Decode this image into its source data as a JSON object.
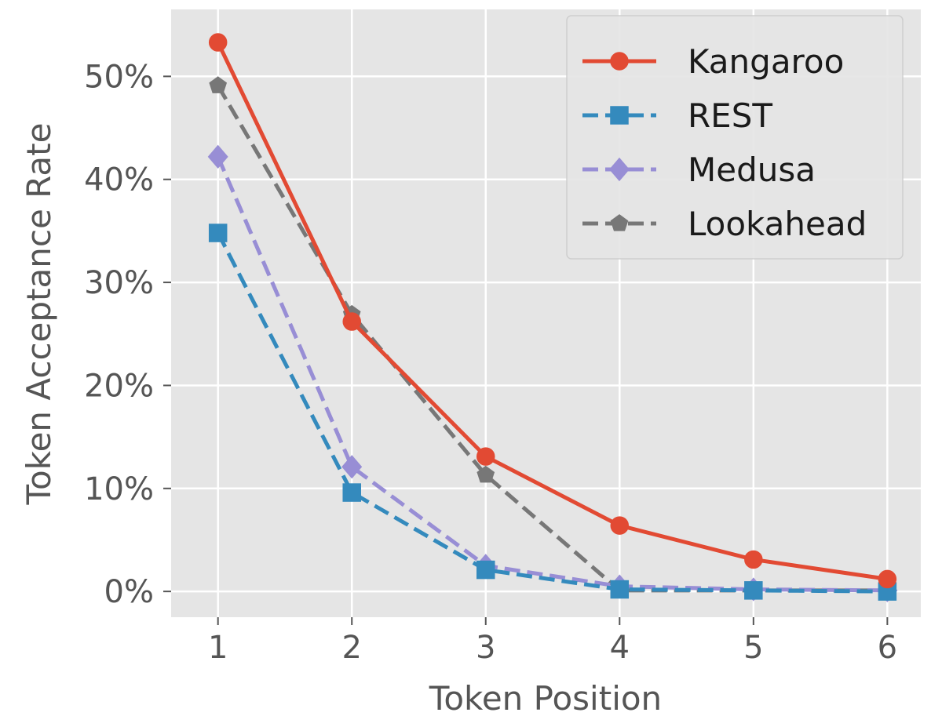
{
  "chart_data": {
    "type": "line",
    "xlabel": "Token Position",
    "ylabel": "Token Acceptance Rate",
    "x": [
      1,
      2,
      3,
      4,
      5,
      6
    ],
    "x_tick_labels": [
      "1",
      "2",
      "3",
      "4",
      "5",
      "6"
    ],
    "y_tick_values": [
      0,
      10,
      20,
      30,
      40,
      50
    ],
    "y_tick_labels": [
      "0%",
      "10%",
      "20%",
      "30%",
      "40%",
      "50%"
    ],
    "xlim": [
      0.65,
      6.25
    ],
    "ylim": [
      -2.5,
      56.5
    ],
    "grid": true,
    "legend_position": "top-right",
    "background_color": "#E5E5E5",
    "grid_color": "#FFFFFF",
    "series": [
      {
        "name": "Kangaroo",
        "color": "#E24A33",
        "linestyle": "solid",
        "marker": "circle",
        "values": [
          53.3,
          26.2,
          13.1,
          6.4,
          3.1,
          1.2
        ]
      },
      {
        "name": "REST",
        "color": "#348ABD",
        "linestyle": "dashed",
        "marker": "square",
        "values": [
          34.8,
          9.6,
          2.1,
          0.2,
          0.1,
          0.0
        ]
      },
      {
        "name": "Medusa",
        "color": "#988ED5",
        "linestyle": "dashed",
        "marker": "diamond",
        "values": [
          42.2,
          12.1,
          2.5,
          0.5,
          0.2,
          0.1
        ]
      },
      {
        "name": "Lookahead",
        "color": "#777777",
        "linestyle": "dashed",
        "marker": "pentagon",
        "values": [
          49.1,
          26.9,
          11.3,
          0.1,
          0.1,
          0.1
        ]
      }
    ]
  }
}
